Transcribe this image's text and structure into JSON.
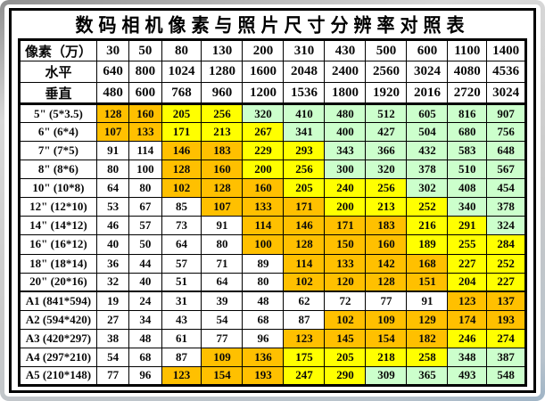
{
  "title": "数码相机像素与照片尺寸分辨率对照表",
  "palette": {
    "w": "#FFFFFF",
    "o": "#FFC000",
    "y": "#FFFF00",
    "g": "#CCFFCC"
  },
  "chart_data": {
    "type": "table",
    "title": "数码相机像素与照片尺寸分辨率对照表",
    "header": {
      "label": "像素（万）",
      "values": [
        "30",
        "50",
        "80",
        "130",
        "200",
        "310",
        "430",
        "500",
        "600",
        "1100",
        "1400"
      ]
    },
    "rows": [
      {
        "label": "水平",
        "values": [
          640,
          800,
          1024,
          1280,
          1600,
          2048,
          2400,
          2560,
          3024,
          4080,
          4536
        ],
        "colors": "wwwwwwwwwww"
      },
      {
        "label": "垂直",
        "values": [
          480,
          600,
          768,
          960,
          1200,
          1536,
          1800,
          1920,
          2016,
          2720,
          3024
        ],
        "colors": "wwwwwwwwwww"
      },
      {
        "label": "5\" (5*3.5)",
        "values": [
          128,
          160,
          205,
          256,
          320,
          410,
          480,
          512,
          605,
          816,
          907
        ],
        "colors": "ooyyggggggg"
      },
      {
        "label": "6\" (6*4)",
        "values": [
          107,
          133,
          171,
          213,
          267,
          341,
          400,
          427,
          504,
          680,
          756
        ],
        "colors": "ooyyygggggg"
      },
      {
        "label": "7\" (7*5)",
        "values": [
          91,
          114,
          146,
          183,
          229,
          293,
          343,
          366,
          432,
          583,
          648
        ],
        "colors": "wwooyyggggg"
      },
      {
        "label": "8\" (8*6)",
        "values": [
          80,
          100,
          128,
          160,
          200,
          256,
          300,
          320,
          378,
          510,
          567
        ],
        "colors": "wwooyyggggg"
      },
      {
        "label": "10\" (10*8)",
        "values": [
          64,
          80,
          102,
          128,
          160,
          205,
          240,
          256,
          302,
          408,
          454
        ],
        "colors": "wwoooyyyggg"
      },
      {
        "label": "12\" (12*10)",
        "values": [
          53,
          67,
          85,
          107,
          133,
          171,
          200,
          213,
          252,
          340,
          378
        ],
        "colors": "wwwoooyyygg"
      },
      {
        "label": "14\" (14*12)",
        "values": [
          46,
          57,
          73,
          91,
          114,
          146,
          171,
          183,
          216,
          291,
          324
        ],
        "colors": "wwwwooooyyg"
      },
      {
        "label": "16\" (16*12)",
        "values": [
          40,
          50,
          64,
          80,
          100,
          128,
          150,
          160,
          189,
          255,
          284
        ],
        "colors": "wwwwooooyyy"
      },
      {
        "label": "18\" (18*14)",
        "values": [
          36,
          44,
          57,
          71,
          89,
          114,
          133,
          142,
          168,
          227,
          252
        ],
        "colors": "wwwwwooooyy"
      },
      {
        "label": "20\" (20*16)",
        "values": [
          32,
          40,
          51,
          64,
          80,
          102,
          120,
          128,
          151,
          204,
          227
        ],
        "colors": "wwwwwooooyy"
      },
      {
        "label": "A1 (841*594)",
        "values": [
          19,
          24,
          31,
          39,
          48,
          62,
          72,
          77,
          91,
          123,
          137
        ],
        "colors": "wwwwwwwwwoo"
      },
      {
        "label": "A2 (594*420)",
        "values": [
          27,
          34,
          43,
          54,
          68,
          87,
          102,
          109,
          129,
          174,
          193
        ],
        "colors": "wwwwwwooooo"
      },
      {
        "label": "A3 (420*297)",
        "values": [
          38,
          48,
          61,
          77,
          96,
          123,
          145,
          154,
          182,
          246,
          274
        ],
        "colors": "wwwwwooooyy"
      },
      {
        "label": "A4 (297*210)",
        "values": [
          54,
          68,
          87,
          109,
          136,
          175,
          205,
          218,
          258,
          348,
          387
        ],
        "colors": "wwwooyyyygg"
      },
      {
        "label": "A5 (210*148)",
        "values": [
          77,
          96,
          123,
          154,
          193,
          247,
          290,
          309,
          365,
          493,
          548
        ],
        "colors": "wwoooyygggg"
      }
    ]
  }
}
